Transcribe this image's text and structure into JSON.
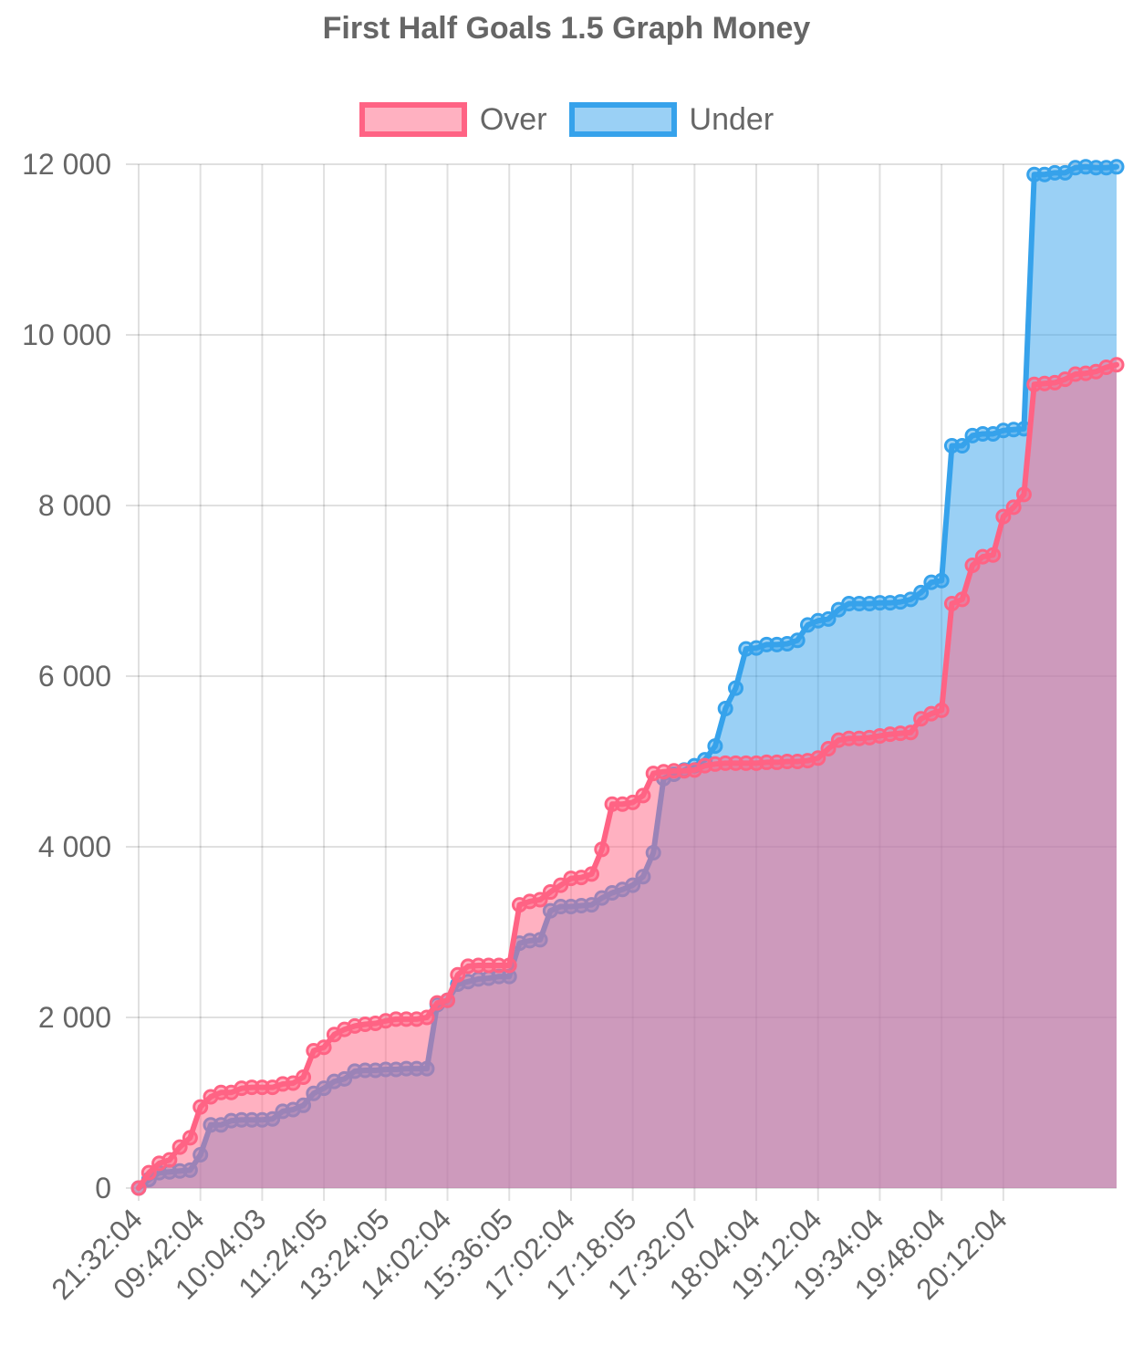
{
  "chart_data": {
    "type": "area",
    "title": "First Half Goals 1.5 Graph Money",
    "xlabel": "",
    "ylabel": "",
    "ylim": [
      0,
      12000
    ],
    "yticks": [
      0,
      2000,
      4000,
      6000,
      8000,
      10000,
      12000
    ],
    "ytick_labels": [
      "0",
      "2 000",
      "4 000",
      "6 000",
      "8 000",
      "10 000",
      "12 000"
    ],
    "x_tick_labels": [
      "21:32:04",
      "09:42:04",
      "10:04:03",
      "11:24:05",
      "13:24:05",
      "14:02:04",
      "15:36:05",
      "17:02:04",
      "17:18:05",
      "17:32:07",
      "18:04:04",
      "19:12:04",
      "19:34:04",
      "19:48:04",
      "20:12:04"
    ],
    "x_tick_every": 6,
    "grid": true,
    "legend_position": "top",
    "series": [
      {
        "name": "Over",
        "color": "#ff6384",
        "fill": "rgba(255,99,132,0.5)",
        "values": [
          0,
          180,
          290,
          330,
          480,
          590,
          950,
          1070,
          1120,
          1120,
          1170,
          1180,
          1180,
          1180,
          1220,
          1230,
          1300,
          1610,
          1650,
          1800,
          1860,
          1900,
          1920,
          1930,
          1960,
          1980,
          1980,
          1980,
          2000,
          2170,
          2200,
          2500,
          2600,
          2610,
          2610,
          2610,
          2610,
          3320,
          3360,
          3380,
          3470,
          3550,
          3630,
          3640,
          3680,
          3970,
          4500,
          4500,
          4520,
          4600,
          4860,
          4880,
          4890,
          4890,
          4900,
          4950,
          4970,
          4980,
          4980,
          4980,
          4980,
          4990,
          4990,
          5000,
          5000,
          5010,
          5040,
          5150,
          5250,
          5270,
          5270,
          5280,
          5300,
          5320,
          5330,
          5340,
          5500,
          5560,
          5600,
          6850,
          6900,
          7300,
          7400,
          7420,
          7870,
          7980,
          8130,
          9420,
          9430,
          9440,
          9480,
          9540,
          9550,
          9570,
          9620,
          9650
        ]
      },
      {
        "name": "Under",
        "color": "#36a2eb",
        "fill": "rgba(54,162,235,0.5)",
        "values": [
          0,
          100,
          180,
          190,
          200,
          210,
          390,
          740,
          740,
          790,
          800,
          800,
          800,
          810,
          900,
          920,
          970,
          1110,
          1170,
          1250,
          1280,
          1370,
          1380,
          1380,
          1390,
          1390,
          1400,
          1400,
          1400,
          2150,
          2200,
          2390,
          2420,
          2450,
          2460,
          2480,
          2480,
          2870,
          2900,
          2910,
          3250,
          3300,
          3300,
          3310,
          3320,
          3400,
          3460,
          3500,
          3550,
          3650,
          3930,
          4800,
          4850,
          4900,
          4950,
          5020,
          5180,
          5620,
          5860,
          6320,
          6330,
          6370,
          6370,
          6380,
          6420,
          6600,
          6650,
          6670,
          6780,
          6850,
          6850,
          6850,
          6860,
          6860,
          6870,
          6900,
          6980,
          7100,
          7120,
          8700,
          8700,
          8820,
          8840,
          8840,
          8880,
          8890,
          8900,
          11880,
          11880,
          11900,
          11900,
          11960,
          11970,
          11960,
          11960,
          11970
        ]
      }
    ]
  }
}
